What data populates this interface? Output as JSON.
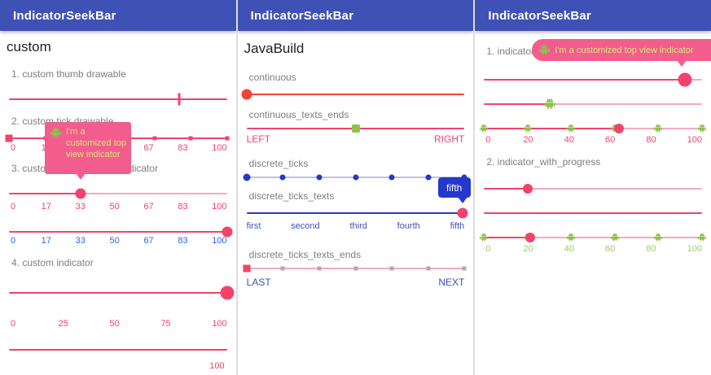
{
  "colors": {
    "appbar": "#3f51b5",
    "heading": "#1f1f1f",
    "gray_label": "#7e7e7e",
    "pink": "#f2436d",
    "pink_light": "#f5a9be",
    "tooltip_pink": "#f25d8e",
    "tooltip_text": "#dce775",
    "red": "#f44336",
    "blue": "#2438cc",
    "blue_bright": "#2962ff",
    "indigo": "#3f51b5",
    "green": "#8bc34a",
    "green_label": "#9ccc65"
  },
  "app_title": "IndicatorSeekBar",
  "left": {
    "heading": "custom",
    "s1_label": "1. custom thumb drawable",
    "s2_label": "2. custom tick drawable",
    "s3_label": "3. custom tick texts color indicator",
    "s4_label": "4. custom indicator",
    "tooltip_text": "I'm a customized top view indicator",
    "tick_positions": [
      0,
      16.7,
      33.3,
      50,
      66.7,
      83.3,
      100
    ],
    "scale7": [
      "0",
      "17",
      "33",
      "50",
      "67",
      "83",
      "100"
    ],
    "scale5": [
      "0",
      "25",
      "50",
      "75",
      "100"
    ],
    "end_label": "100",
    "values": {
      "s1": 78,
      "s2": 0,
      "s3": 33,
      "s4": 100,
      "s5": 100
    }
  },
  "middle": {
    "heading": "JavaBuild",
    "continuous_label": "continuous",
    "texts_ends_label": "continuous_texts_ends",
    "left_text": "LEFT",
    "right_text": "RIGHT",
    "discrete_ticks_label": "discrete_ticks",
    "discrete_texts_label": "discrete_ticks_texts",
    "tick_texts": [
      "first",
      "second",
      "third",
      "fourth",
      "fifth"
    ],
    "indicator_text": "fifth",
    "discrete_ends_label": "discrete_ticks_texts_ends",
    "last_text": "LAST",
    "next_text": "NEXT",
    "tick_positions": [
      0,
      16.7,
      33.3,
      50,
      66.7,
      83.3,
      100
    ],
    "values": {
      "continuous": 0,
      "texts_ends": 50,
      "discrete_ticks": 0,
      "discrete_texts": 99,
      "discrete_ends": 0
    }
  },
  "right": {
    "s1_label": "1. indicator",
    "tooltip_text": "I'm a customized top view indicator",
    "s2_label": "2. indicator_with_progress",
    "scale6": [
      "0",
      "20",
      "40",
      "60",
      "80",
      "100"
    ],
    "tick_positions": [
      0,
      20,
      40,
      60,
      80,
      100
    ],
    "values": {
      "r1": 92,
      "r2": 30,
      "r3": 62,
      "r4": 20,
      "r6": 21
    }
  }
}
